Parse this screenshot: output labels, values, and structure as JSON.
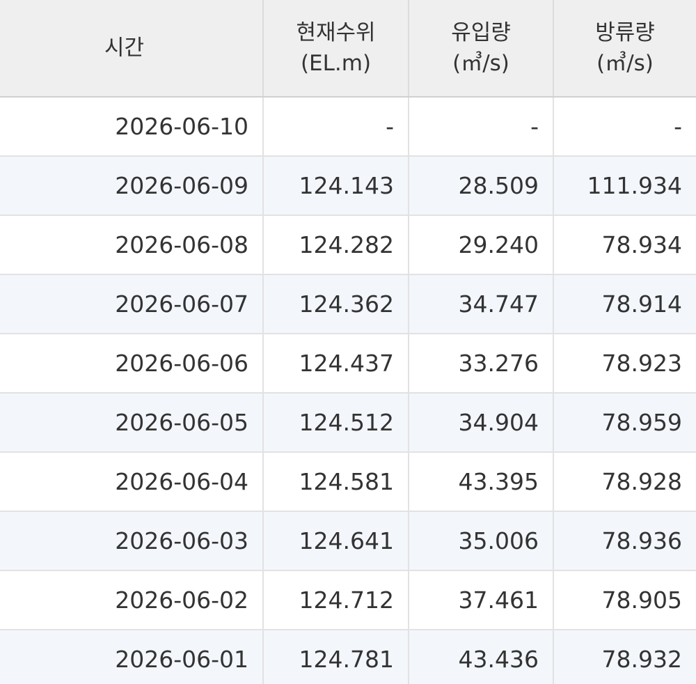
{
  "table": {
    "header": [
      [
        "시간"
      ],
      [
        "현재수위",
        "(EL.m)"
      ],
      [
        "유입량",
        "(㎥/s)"
      ],
      [
        "방류량",
        "(㎥/s)"
      ]
    ],
    "rows": [
      [
        "2026-06-10",
        "-",
        "-",
        "-"
      ],
      [
        "2026-06-09",
        "124.143",
        "28.509",
        "111.934"
      ],
      [
        "2026-06-08",
        "124.282",
        "29.240",
        "78.934"
      ],
      [
        "2026-06-07",
        "124.362",
        "34.747",
        "78.914"
      ],
      [
        "2026-06-06",
        "124.437",
        "33.276",
        "78.923"
      ],
      [
        "2026-06-05",
        "124.512",
        "34.904",
        "78.959"
      ],
      [
        "2026-06-04",
        "124.581",
        "43.395",
        "78.928"
      ],
      [
        "2026-06-03",
        "124.641",
        "35.006",
        "78.936"
      ],
      [
        "2026-06-02",
        "124.712",
        "37.461",
        "78.905"
      ],
      [
        "2026-06-01",
        "124.781",
        "43.436",
        "78.932"
      ]
    ]
  }
}
